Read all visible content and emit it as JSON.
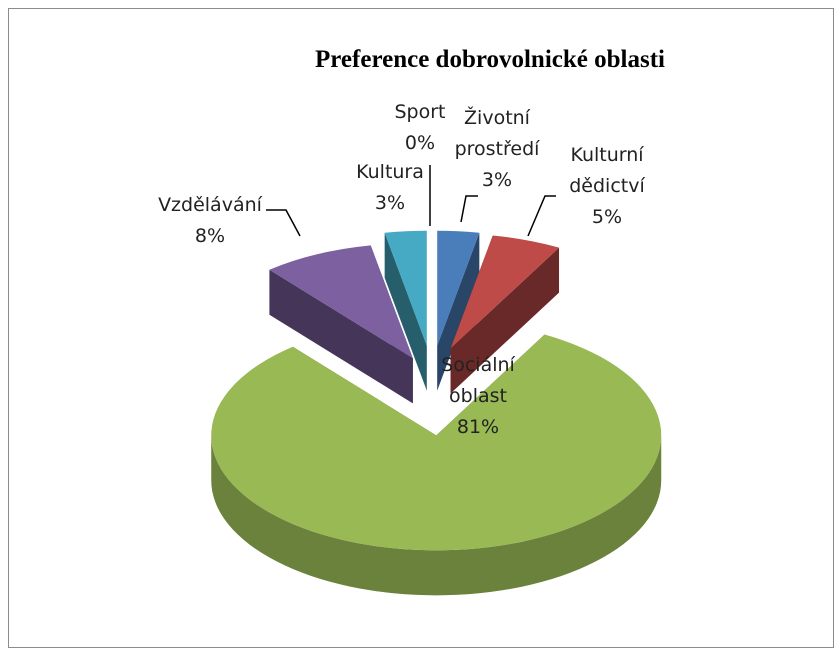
{
  "chart_data": {
    "type": "pie",
    "title": "Preference dobrovolnické oblasti",
    "categories": [
      "Životní prostředí",
      "Kulturní dědictví",
      "Sociální oblast",
      "Vzdělávání",
      "Kultura",
      "Sport"
    ],
    "values": [
      3,
      5,
      81,
      8,
      3,
      0
    ],
    "value_labels": [
      "3%",
      "5%",
      "81%",
      "8%",
      "3%",
      "0%"
    ],
    "colors": [
      "#4a7ebb",
      "#be4b48",
      "#98b954",
      "#7d60a0",
      "#46aac5",
      "#f79646"
    ]
  }
}
